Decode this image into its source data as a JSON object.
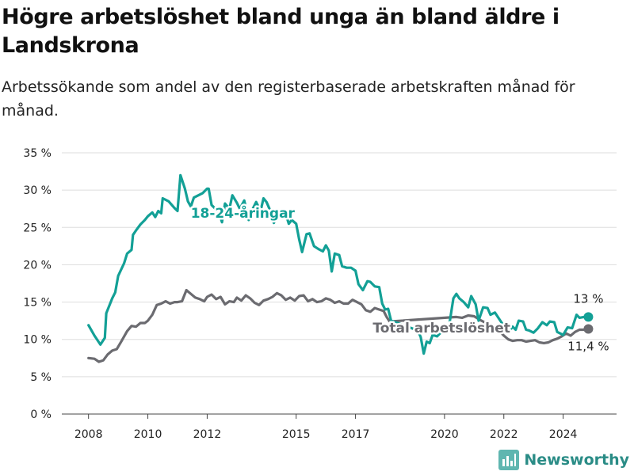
{
  "title": "Högre arbetslöshet bland unga än bland äldre i Landskrona",
  "subtitle": "Arbetssökande som andel av den registerbaserade arbetskraften månad för månad.",
  "brand": "Newsworthy",
  "colors": {
    "youth": "#13a096",
    "total": "#6b6b70",
    "grid": "#dddddd"
  },
  "chart_data": {
    "type": "line",
    "title": "Högre arbetslöshet bland unga än bland äldre i Landskrona",
    "subtitle": "Arbetssökande som andel av den registerbaserade arbetskraften månad för månad.",
    "ylim": [
      0,
      35
    ],
    "yticks": [
      0,
      5,
      10,
      15,
      20,
      25,
      30,
      35
    ],
    "ytick_labels": [
      "0 %",
      "5 %",
      "10 %",
      "15 %",
      "20 %",
      "25 %",
      "30 %",
      "35 %"
    ],
    "xticks": [
      2008,
      2010,
      2012,
      2015,
      2017,
      2020,
      2022,
      2024
    ],
    "xtick_labels": [
      "2008",
      "2010",
      "2012",
      "2015",
      "2017",
      "2020",
      "2022",
      "2024"
    ],
    "xlim": [
      2007.1,
      2025.8
    ],
    "grid": true,
    "series": [
      {
        "name": "18-24-åringar",
        "color": "#13a096",
        "end_label": "13 %",
        "points": [
          [
            2008.0,
            11.9
          ],
          [
            2008.2,
            10.5
          ],
          [
            2008.4,
            9.3
          ],
          [
            2008.55,
            10.2
          ],
          [
            2008.6,
            13.5
          ],
          [
            2008.8,
            15.5
          ],
          [
            2008.9,
            16.3
          ],
          [
            2009.0,
            18.5
          ],
          [
            2009.2,
            20.2
          ],
          [
            2009.3,
            21.5
          ],
          [
            2009.45,
            22.0
          ],
          [
            2009.5,
            24.0
          ],
          [
            2009.6,
            24.6
          ],
          [
            2009.75,
            25.4
          ],
          [
            2009.9,
            26.0
          ],
          [
            2010.0,
            26.5
          ],
          [
            2010.15,
            27.0
          ],
          [
            2010.25,
            26.4
          ],
          [
            2010.35,
            27.2
          ],
          [
            2010.45,
            26.9
          ],
          [
            2010.5,
            28.9
          ],
          [
            2010.7,
            28.5
          ],
          [
            2010.9,
            27.6
          ],
          [
            2011.0,
            27.2
          ],
          [
            2011.1,
            32.0
          ],
          [
            2011.25,
            30.2
          ],
          [
            2011.35,
            28.5
          ],
          [
            2011.45,
            27.8
          ],
          [
            2011.55,
            29.0
          ],
          [
            2011.75,
            29.4
          ],
          [
            2011.85,
            29.6
          ],
          [
            2012.0,
            30.2
          ],
          [
            2012.05,
            30.2
          ],
          [
            2012.15,
            28.0
          ],
          [
            2012.25,
            27.6
          ],
          [
            2012.4,
            27.0
          ],
          [
            2012.5,
            25.7
          ],
          [
            2012.6,
            28.2
          ],
          [
            2012.75,
            27.5
          ],
          [
            2012.85,
            29.3
          ],
          [
            2013.0,
            28.3
          ],
          [
            2013.1,
            27.5
          ],
          [
            2013.25,
            28.6
          ],
          [
            2013.4,
            26.0
          ],
          [
            2013.5,
            27.2
          ],
          [
            2013.65,
            28.4
          ],
          [
            2013.8,
            27.2
          ],
          [
            2013.9,
            28.9
          ],
          [
            2014.0,
            28.4
          ],
          [
            2014.1,
            27.5
          ],
          [
            2014.25,
            25.6
          ],
          [
            2014.4,
            27.2
          ],
          [
            2014.5,
            26.3
          ],
          [
            2014.65,
            26.8
          ],
          [
            2014.75,
            25.5
          ],
          [
            2014.85,
            26.0
          ],
          [
            2015.0,
            25.5
          ],
          [
            2015.1,
            23.4
          ],
          [
            2015.2,
            21.7
          ],
          [
            2015.35,
            24.1
          ],
          [
            2015.45,
            24.2
          ],
          [
            2015.6,
            22.5
          ],
          [
            2015.75,
            22.1
          ],
          [
            2015.9,
            21.8
          ],
          [
            2016.0,
            22.6
          ],
          [
            2016.1,
            21.9
          ],
          [
            2016.2,
            19.1
          ],
          [
            2016.3,
            21.5
          ],
          [
            2016.45,
            21.3
          ],
          [
            2016.55,
            19.8
          ],
          [
            2016.7,
            19.6
          ],
          [
            2016.85,
            19.6
          ],
          [
            2017.0,
            19.2
          ],
          [
            2017.1,
            17.4
          ],
          [
            2017.25,
            16.6
          ],
          [
            2017.4,
            17.8
          ],
          [
            2017.5,
            17.7
          ],
          [
            2017.65,
            17.1
          ],
          [
            2017.8,
            17.0
          ],
          [
            2017.9,
            14.8
          ],
          [
            2018.0,
            14.0
          ],
          [
            2018.1,
            14.1
          ],
          [
            2018.2,
            12.5
          ],
          [
            2019.1,
            11.2
          ],
          [
            2019.2,
            10.3
          ],
          [
            2019.3,
            8.1
          ],
          [
            2019.4,
            9.7
          ],
          [
            2019.5,
            9.5
          ],
          [
            2019.6,
            10.6
          ],
          [
            2019.75,
            10.4
          ],
          [
            2019.9,
            11.0
          ],
          [
            2020.05,
            11.8
          ],
          [
            2020.15,
            11.7
          ],
          [
            2020.3,
            15.5
          ],
          [
            2020.4,
            16.1
          ],
          [
            2020.5,
            15.5
          ],
          [
            2020.65,
            15.0
          ],
          [
            2020.8,
            14.3
          ],
          [
            2020.9,
            15.8
          ],
          [
            2021.05,
            14.7
          ],
          [
            2021.15,
            12.5
          ],
          [
            2021.3,
            14.3
          ],
          [
            2021.45,
            14.2
          ],
          [
            2021.55,
            13.3
          ],
          [
            2021.7,
            13.6
          ],
          [
            2021.85,
            12.7
          ],
          [
            2022.0,
            11.8
          ],
          [
            2022.15,
            11.0
          ],
          [
            2022.3,
            11.7
          ],
          [
            2022.4,
            11.3
          ],
          [
            2022.5,
            12.5
          ],
          [
            2022.65,
            12.4
          ],
          [
            2022.75,
            11.3
          ],
          [
            2022.85,
            11.2
          ],
          [
            2023.0,
            10.9
          ],
          [
            2023.15,
            11.5
          ],
          [
            2023.3,
            12.3
          ],
          [
            2023.45,
            11.9
          ],
          [
            2023.55,
            12.4
          ],
          [
            2023.7,
            12.3
          ],
          [
            2023.8,
            11.0
          ],
          [
            2023.9,
            10.8
          ],
          [
            2024.0,
            10.6
          ],
          [
            2024.15,
            11.6
          ],
          [
            2024.3,
            11.5
          ],
          [
            2024.45,
            13.3
          ],
          [
            2024.55,
            12.9
          ],
          [
            2024.7,
            13.0
          ],
          [
            2024.85,
            13.0
          ]
        ]
      },
      {
        "name": "Total arbetslöshet",
        "color": "#6b6b70",
        "end_label": "11,4 %",
        "points": [
          [
            2008.0,
            7.5
          ],
          [
            2008.2,
            7.4
          ],
          [
            2008.35,
            7.0
          ],
          [
            2008.5,
            7.2
          ],
          [
            2008.65,
            8.0
          ],
          [
            2008.8,
            8.5
          ],
          [
            2008.95,
            8.7
          ],
          [
            2009.1,
            9.7
          ],
          [
            2009.3,
            11.1
          ],
          [
            2009.45,
            11.8
          ],
          [
            2009.6,
            11.7
          ],
          [
            2009.75,
            12.2
          ],
          [
            2009.9,
            12.2
          ],
          [
            2010.0,
            12.5
          ],
          [
            2010.15,
            13.3
          ],
          [
            2010.3,
            14.6
          ],
          [
            2010.45,
            14.8
          ],
          [
            2010.6,
            15.1
          ],
          [
            2010.75,
            14.8
          ],
          [
            2010.9,
            15.0
          ],
          [
            2011.0,
            15.0
          ],
          [
            2011.15,
            15.1
          ],
          [
            2011.3,
            16.6
          ],
          [
            2011.45,
            16.1
          ],
          [
            2011.6,
            15.6
          ],
          [
            2011.75,
            15.4
          ],
          [
            2011.9,
            15.1
          ],
          [
            2012.0,
            15.7
          ],
          [
            2012.15,
            16.0
          ],
          [
            2012.3,
            15.4
          ],
          [
            2012.45,
            15.7
          ],
          [
            2012.6,
            14.7
          ],
          [
            2012.75,
            15.1
          ],
          [
            2012.9,
            15.0
          ],
          [
            2013.0,
            15.6
          ],
          [
            2013.15,
            15.2
          ],
          [
            2013.3,
            15.9
          ],
          [
            2013.45,
            15.5
          ],
          [
            2013.6,
            14.9
          ],
          [
            2013.75,
            14.6
          ],
          [
            2013.9,
            15.2
          ],
          [
            2014.05,
            15.4
          ],
          [
            2014.2,
            15.7
          ],
          [
            2014.35,
            16.2
          ],
          [
            2014.5,
            15.9
          ],
          [
            2014.65,
            15.3
          ],
          [
            2014.8,
            15.6
          ],
          [
            2014.95,
            15.2
          ],
          [
            2015.1,
            15.8
          ],
          [
            2015.25,
            15.9
          ],
          [
            2015.4,
            15.1
          ],
          [
            2015.55,
            15.4
          ],
          [
            2015.7,
            15.0
          ],
          [
            2015.85,
            15.1
          ],
          [
            2016.0,
            15.5
          ],
          [
            2016.15,
            15.3
          ],
          [
            2016.3,
            14.9
          ],
          [
            2016.45,
            15.1
          ],
          [
            2016.6,
            14.8
          ],
          [
            2016.75,
            14.8
          ],
          [
            2016.9,
            15.3
          ],
          [
            2017.05,
            15.0
          ],
          [
            2017.2,
            14.7
          ],
          [
            2017.35,
            13.9
          ],
          [
            2017.5,
            13.7
          ],
          [
            2017.65,
            14.2
          ],
          [
            2017.8,
            14.0
          ],
          [
            2017.95,
            13.8
          ],
          [
            2018.05,
            13.0
          ],
          [
            2018.15,
            12.4
          ],
          [
            2020.4,
            13.0
          ],
          [
            2020.6,
            12.9
          ],
          [
            2020.8,
            13.2
          ],
          [
            2021.0,
            13.1
          ],
          [
            2021.2,
            12.6
          ],
          [
            2021.4,
            12.2
          ],
          [
            2021.85,
            11.1
          ],
          [
            2022.0,
            10.5
          ],
          [
            2022.15,
            10.0
          ],
          [
            2022.3,
            9.8
          ],
          [
            2022.45,
            9.9
          ],
          [
            2022.6,
            9.9
          ],
          [
            2022.75,
            9.7
          ],
          [
            2022.9,
            9.8
          ],
          [
            2023.05,
            9.9
          ],
          [
            2023.2,
            9.6
          ],
          [
            2023.35,
            9.5
          ],
          [
            2023.5,
            9.6
          ],
          [
            2023.65,
            9.9
          ],
          [
            2023.8,
            10.1
          ],
          [
            2023.95,
            10.4
          ],
          [
            2024.1,
            10.8
          ],
          [
            2024.25,
            10.5
          ],
          [
            2024.4,
            11.0
          ],
          [
            2024.55,
            11.3
          ],
          [
            2024.7,
            11.3
          ],
          [
            2024.85,
            11.4
          ]
        ]
      }
    ]
  }
}
